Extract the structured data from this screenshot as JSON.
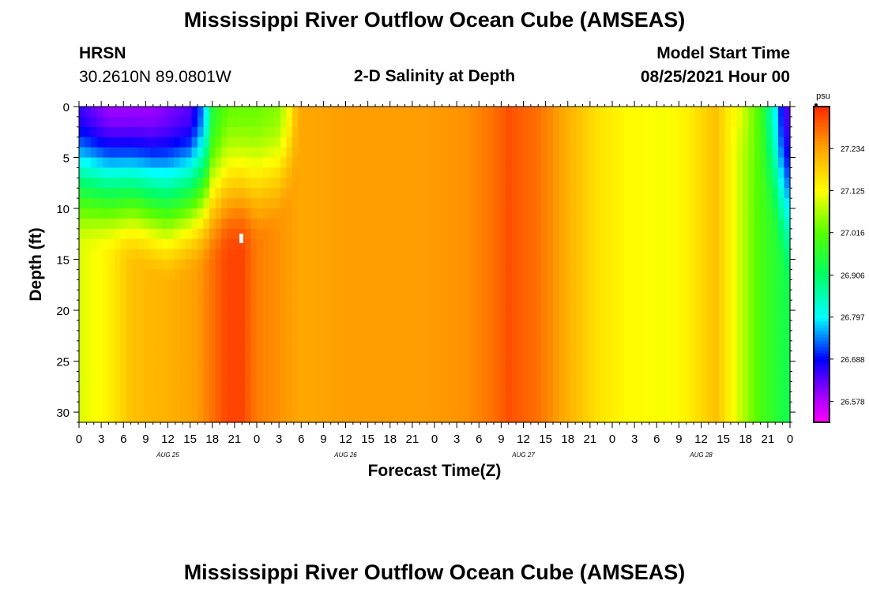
{
  "chart_data": {
    "type": "heatmap",
    "title": "Mississippi River Outflow Ocean Cube (AMSEAS)",
    "footer_title": "Mississippi River Outflow Ocean Cube (AMSEAS)",
    "station": "HRSN",
    "location": "30.2610N  89.0801W",
    "subtitle": "2-D Salinity at Depth",
    "model_start_label": "Model Start Time",
    "model_start_value": "08/25/2021 Hour 00",
    "xlabel": "Forecast Time(Z)",
    "ylabel": "Depth (ft)",
    "x_range_hours": [
      0,
      96
    ],
    "y_range_ft": [
      0,
      31
    ],
    "x_tick_labels": [
      "0",
      "3",
      "6",
      "9",
      "12",
      "15",
      "18",
      "21",
      "0",
      "3",
      "6",
      "9",
      "12",
      "15",
      "18",
      "21",
      "0",
      "3",
      "6",
      "9",
      "12",
      "15",
      "18",
      "21",
      "0",
      "3",
      "6",
      "9",
      "12",
      "15",
      "18",
      "21",
      "0"
    ],
    "y_tick_labels": [
      "0",
      "5",
      "10",
      "15",
      "20",
      "25",
      "30"
    ],
    "y_tick_values": [
      0,
      5,
      10,
      15,
      20,
      25,
      30
    ],
    "date_labels": [
      {
        "label": "AUG 25",
        "hour": 12
      },
      {
        "label": "AUG 26",
        "hour": 36
      },
      {
        "label": "AUG 27",
        "hour": 60
      },
      {
        "label": "AUG 28",
        "hour": 84
      }
    ],
    "colorbar": {
      "unit": "psu",
      "tick_labels": [
        "27.234",
        "27.125",
        "27.016",
        "26.906",
        "26.797",
        "26.688",
        "26.578"
      ],
      "tick_values": [
        27.234,
        27.125,
        27.016,
        26.906,
        26.797,
        26.688,
        26.578
      ],
      "range": [
        26.524,
        27.343
      ],
      "stops": [
        {
          "v": 26.524,
          "color": "#ff00ff"
        },
        {
          "v": 26.6,
          "color": "#9900ff"
        },
        {
          "v": 26.688,
          "color": "#0000ff"
        },
        {
          "v": 26.797,
          "color": "#00ffff"
        },
        {
          "v": 26.906,
          "color": "#00ff66"
        },
        {
          "v": 27.016,
          "color": "#55ff00"
        },
        {
          "v": 27.125,
          "color": "#ffff00"
        },
        {
          "v": 27.234,
          "color": "#ffa500"
        },
        {
          "v": 27.343,
          "color": "#ff2a00"
        }
      ]
    },
    "surface_salinity_by_hour": [
      [
        0,
        26.66
      ],
      [
        4,
        26.6
      ],
      [
        10,
        26.6
      ],
      [
        15,
        26.64
      ],
      [
        17,
        26.76
      ],
      [
        18,
        26.95
      ],
      [
        20,
        27.03
      ],
      [
        24,
        27.03
      ],
      [
        27,
        27.05
      ],
      [
        28.5,
        27.14
      ],
      [
        29.5,
        27.22
      ],
      [
        36,
        27.24
      ],
      [
        46,
        27.24
      ],
      [
        52,
        27.25
      ],
      [
        56,
        27.28
      ],
      [
        58,
        27.31
      ],
      [
        62,
        27.28
      ],
      [
        66,
        27.22
      ],
      [
        70,
        27.16
      ],
      [
        74,
        27.13
      ],
      [
        79,
        27.12
      ],
      [
        82,
        27.14
      ],
      [
        86,
        27.2
      ],
      [
        89,
        27.12
      ],
      [
        92,
        27.0
      ],
      [
        94,
        26.8
      ],
      [
        95,
        26.68
      ],
      [
        96,
        26.62
      ]
    ],
    "bottom_salinity_by_hour": [
      [
        0,
        27.1
      ],
      [
        4,
        27.14
      ],
      [
        7,
        27.2
      ],
      [
        12,
        27.22
      ],
      [
        16,
        27.24
      ],
      [
        18,
        27.28
      ],
      [
        20,
        27.32
      ],
      [
        22,
        27.32
      ],
      [
        24,
        27.27
      ],
      [
        27,
        27.25
      ],
      [
        30,
        27.23
      ],
      [
        36,
        27.24
      ],
      [
        46,
        27.24
      ],
      [
        52,
        27.25
      ],
      [
        56,
        27.28
      ],
      [
        58,
        27.31
      ],
      [
        62,
        27.28
      ],
      [
        66,
        27.22
      ],
      [
        70,
        27.16
      ],
      [
        74,
        27.13
      ],
      [
        79,
        27.12
      ],
      [
        82,
        27.14
      ],
      [
        86,
        27.2
      ],
      [
        89,
        27.1
      ],
      [
        92,
        27.0
      ],
      [
        94,
        26.96
      ],
      [
        95,
        26.94
      ],
      [
        96,
        26.93
      ]
    ],
    "mixed_layer_depth_ft_by_hour": [
      [
        0,
        10
      ],
      [
        8,
        12
      ],
      [
        12,
        14
      ],
      [
        16,
        12.5
      ],
      [
        20,
        11
      ],
      [
        24,
        10
      ],
      [
        27,
        8
      ],
      [
        29,
        5
      ],
      [
        30,
        0
      ],
      [
        88,
        0
      ],
      [
        92,
        5
      ],
      [
        94,
        10
      ],
      [
        96,
        16
      ]
    ]
  }
}
